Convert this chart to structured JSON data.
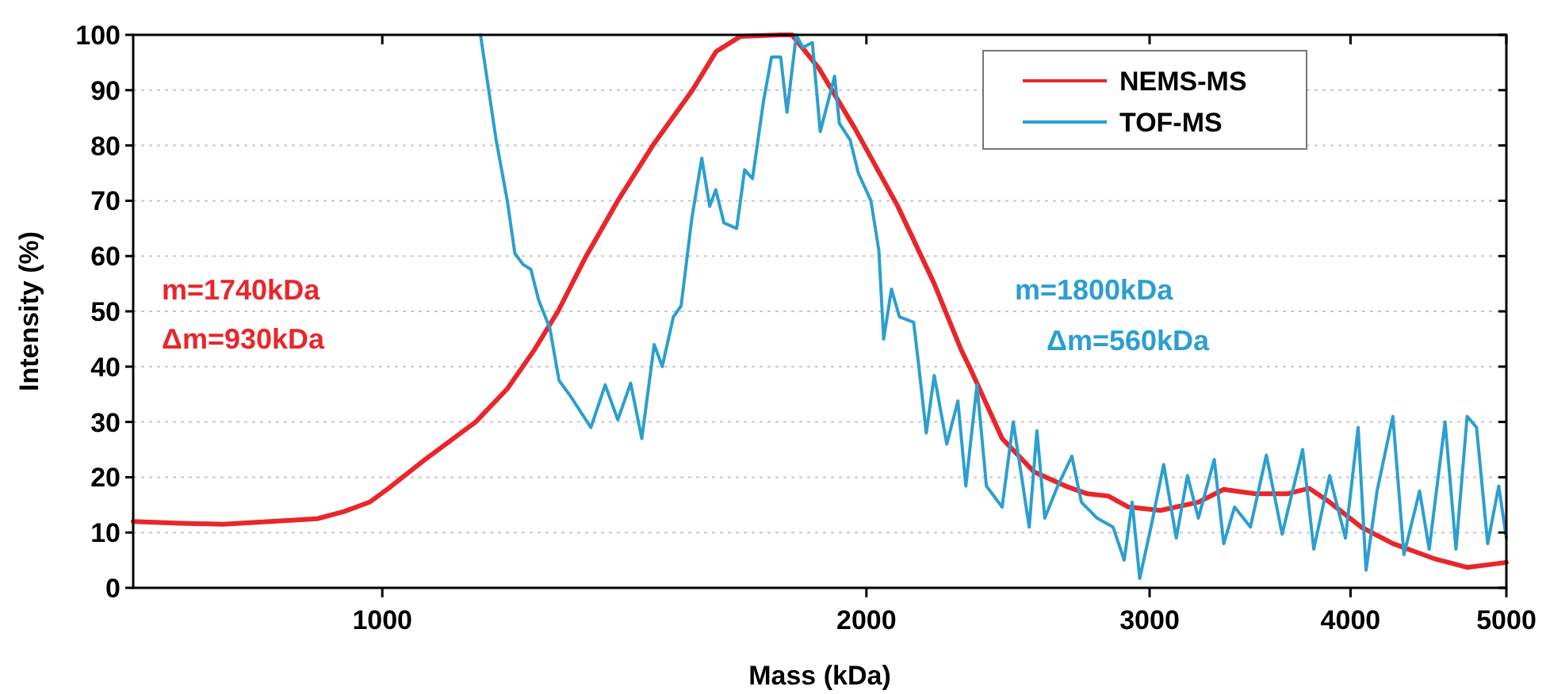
{
  "chart_data": {
    "type": "line",
    "xlabel": "Mass (kDa)",
    "ylabel": "Intensity (%)",
    "log": "x",
    "xlim": [
      700,
      5000
    ],
    "xticks": [
      1000,
      2000,
      3000,
      4000,
      5000
    ],
    "ylim": [
      0,
      100
    ],
    "yticks": [
      0,
      10,
      20,
      30,
      40,
      50,
      60,
      70,
      80,
      90,
      100
    ],
    "grid": "y",
    "legend": "top right",
    "line_style": "solid",
    "marker": "none",
    "annotations": [
      "m=1740kDa",
      "Δm=930kDa",
      "m=1800kDa",
      "Δm=560kDa"
    ],
    "series": [
      {
        "name": "NEMS-MS",
        "color": "#e8262b",
        "x": [
          700,
          743,
          796,
          852,
          911,
          947,
          982,
          1009,
          1061,
          1143,
          1196,
          1243,
          1286,
          1339,
          1401,
          1473,
          1559,
          1613,
          1669,
          1769,
          1798,
          1868,
          1968,
          2092,
          2204,
          2291,
          2322,
          2429,
          2542,
          2660,
          2745,
          2828,
          2911,
          3047,
          3217,
          3336,
          3490,
          3652,
          3770,
          3882,
          4061,
          4250,
          4518,
          4727,
          5000
        ],
        "values": [
          12,
          11.7,
          11.5,
          12,
          12.5,
          13.8,
          15.5,
          18,
          23,
          30,
          36,
          43,
          50,
          60,
          70,
          80,
          90,
          97,
          99.7,
          100,
          100,
          94,
          83,
          69,
          55,
          43,
          39.5,
          27,
          21,
          18.4,
          17,
          16.6,
          14.6,
          14,
          15.5,
          17.8,
          17,
          17,
          18,
          15.5,
          11,
          8,
          5.2,
          3.7,
          4.6
        ]
      },
      {
        "name": "TOF-MS",
        "color": "#2b9fcf",
        "x": [
          1151,
          1177,
          1196,
          1209,
          1223,
          1237,
          1251,
          1271,
          1288,
          1309,
          1348,
          1376,
          1401,
          1427,
          1450,
          1476,
          1493,
          1517,
          1534,
          1558,
          1580,
          1598,
          1612,
          1631,
          1661,
          1680,
          1699,
          1726,
          1746,
          1769,
          1785,
          1809,
          1826,
          1851,
          1872,
          1911,
          1924,
          1954,
          1977,
          2013,
          2036,
          2050,
          2073,
          2097,
          2140,
          2154,
          2179,
          2204,
          2244,
          2280,
          2306,
          2343,
          2375,
          2429,
          2468,
          2525,
          2553,
          2582,
          2630,
          2684,
          2721,
          2783,
          2847,
          2893,
          2926,
          2958,
          3006,
          3061,
          3117,
          3167,
          3217,
          3291,
          3336,
          3388,
          3466,
          3546,
          3627,
          3735,
          3795,
          3882,
          3971,
          4044,
          4090,
          4155,
          4250,
          4318,
          4416,
          4477,
          4580,
          4652,
          4727,
          4791,
          4868,
          4946,
          5000
        ],
        "values": [
          100,
          81,
          70,
          60.5,
          58.5,
          57.6,
          52,
          47,
          37.5,
          34.7,
          29,
          36.7,
          30.4,
          37,
          27,
          44,
          40,
          49,
          51,
          67,
          77.7,
          69,
          72,
          66,
          65,
          75.6,
          74,
          88,
          96,
          96,
          86,
          100,
          97.7,
          98.6,
          82.5,
          92.5,
          84,
          81,
          75,
          70,
          61,
          45,
          54,
          49,
          48,
          41,
          28,
          38.4,
          26,
          33.8,
          18.4,
          36.7,
          18.4,
          14.6,
          30,
          11,
          28.4,
          12.6,
          18.4,
          23.8,
          15.5,
          12.6,
          11,
          5,
          15.5,
          1.7,
          11,
          22.3,
          9,
          20.3,
          12.6,
          23.2,
          8,
          14.6,
          11,
          24,
          9.7,
          25,
          7,
          20.3,
          9,
          29,
          3.2,
          17.5,
          31,
          6,
          17.5,
          7,
          30,
          7,
          31,
          29,
          8,
          18.4,
          9
        ]
      }
    ]
  }
}
